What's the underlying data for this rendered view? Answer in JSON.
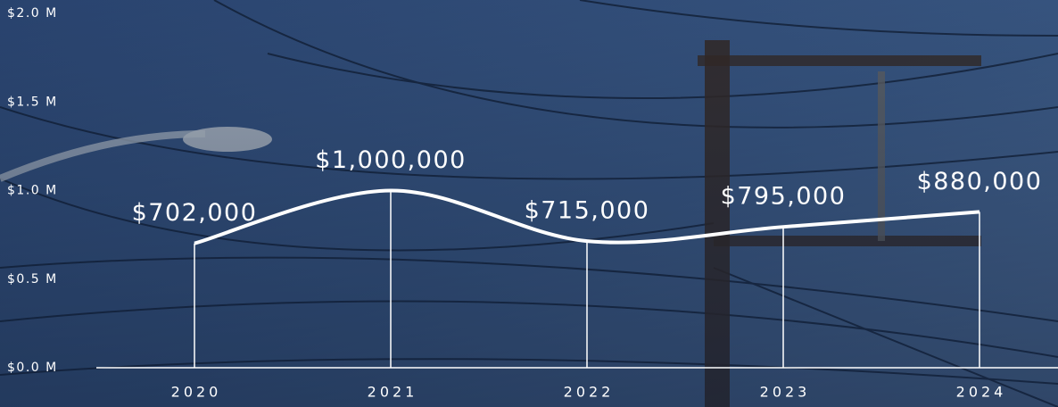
{
  "chart_data": {
    "type": "line",
    "categories": [
      "2020",
      "2021",
      "2022",
      "2023",
      "2024"
    ],
    "values": [
      702000,
      1000000,
      715000,
      795000,
      880000
    ],
    "value_labels": [
      "$702,000",
      "$1,000,000",
      "$715,000",
      "$795,000",
      "$880,000"
    ],
    "color": "#ffffff",
    "ylim": [
      0,
      2000000
    ],
    "yticks": [
      {
        "value": 0,
        "label": "$0.0 M"
      },
      {
        "value": 500000,
        "label": "$0.5 M"
      },
      {
        "value": 1000000,
        "label": "$1.0 M"
      },
      {
        "value": 1500000,
        "label": "$1.5 M"
      },
      {
        "value": 2000000,
        "label": "$2.0 M"
      }
    ],
    "grid": false
  }
}
